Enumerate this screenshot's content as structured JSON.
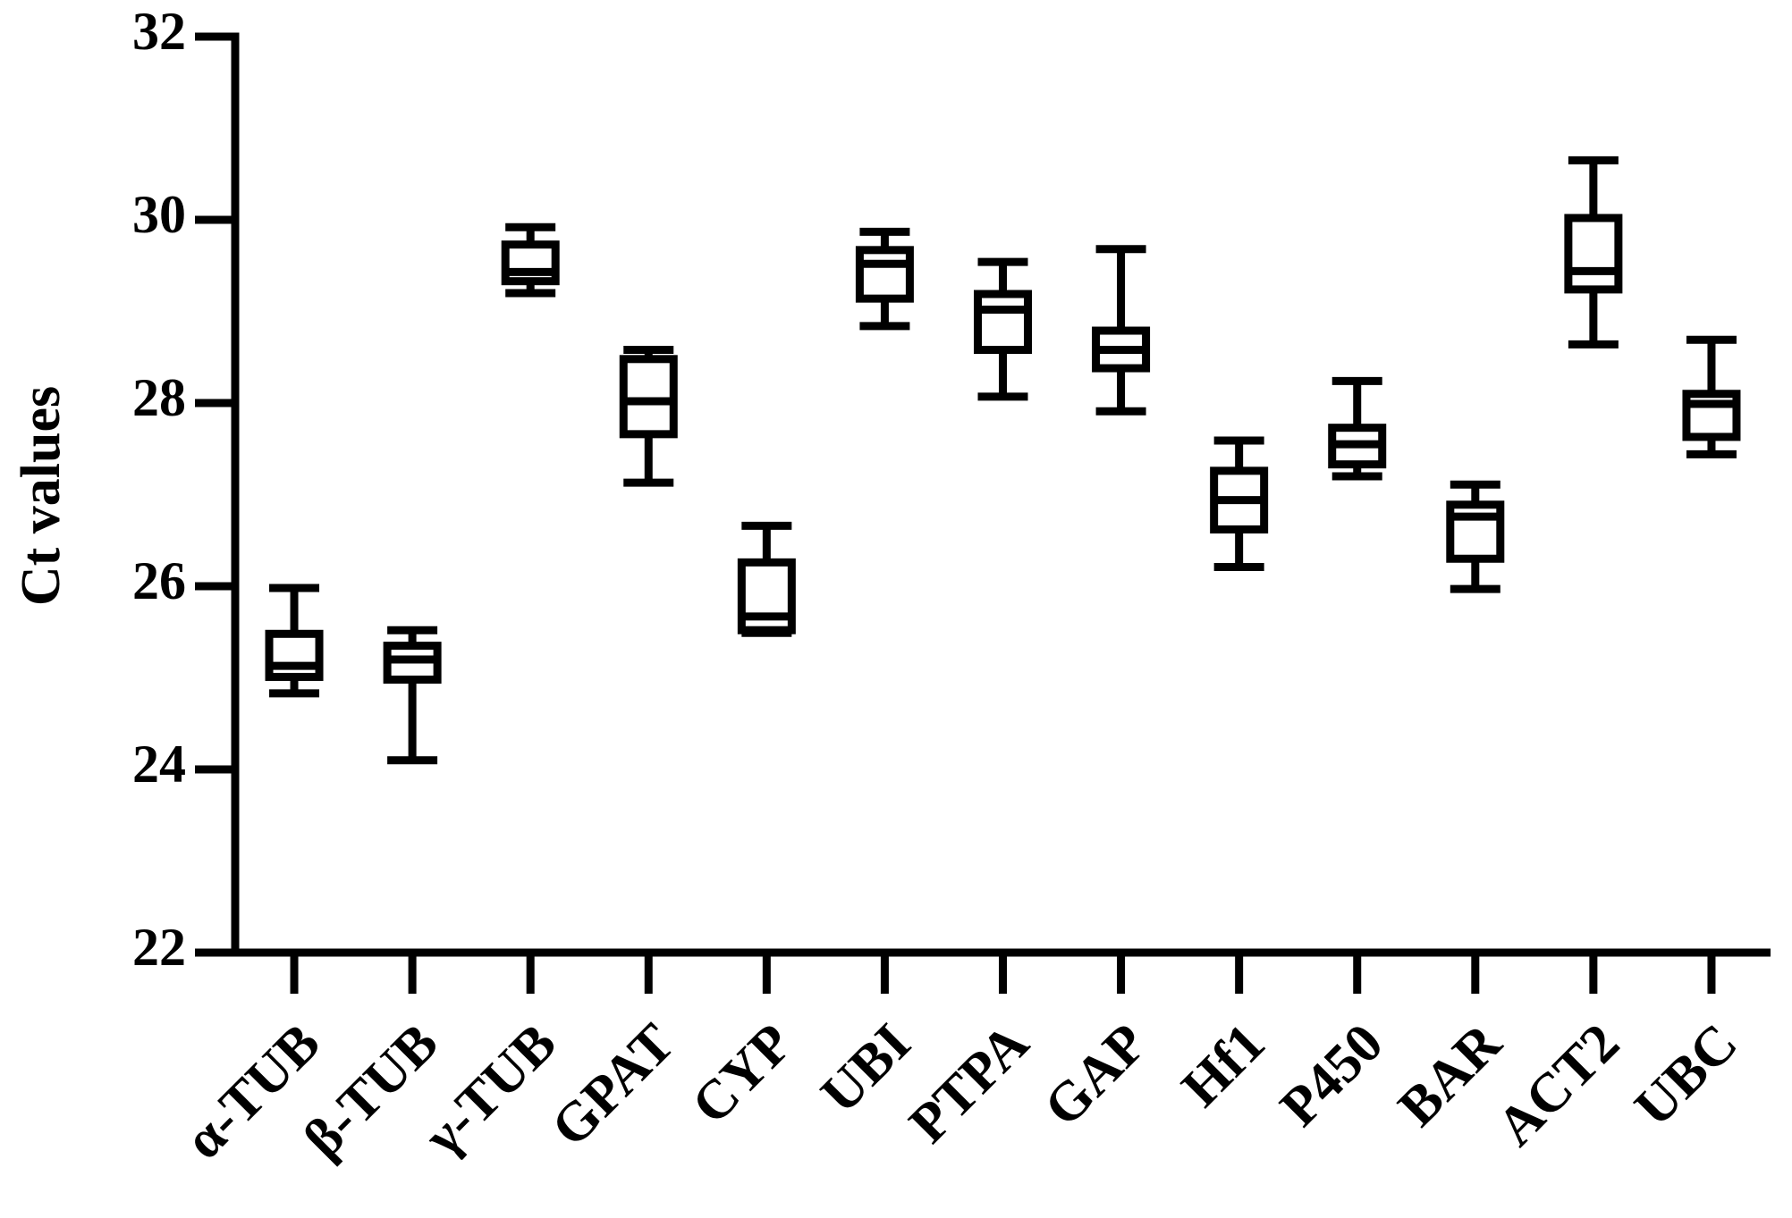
{
  "chart_data": {
    "type": "box",
    "ylabel": "Ct values",
    "categories": [
      "α-TUB",
      "β-TUB",
      "γ-TUB",
      "GPAT",
      "CYP",
      "UBI",
      "PTPA",
      "GAP",
      "Hf1",
      "P450",
      "BAR",
      "ACT2",
      "UBC"
    ],
    "min": [
      24.83,
      24.1,
      29.2,
      27.13,
      25.49,
      28.84,
      28.07,
      27.91,
      26.21,
      27.2,
      25.97,
      28.64,
      27.44
    ],
    "q1": [
      25.01,
      24.98,
      29.33,
      27.66,
      25.52,
      29.14,
      28.58,
      28.38,
      26.62,
      27.33,
      26.3,
      29.24,
      27.63
    ],
    "median": [
      25.13,
      25.2,
      29.43,
      28.02,
      25.67,
      29.52,
      29.02,
      28.58,
      26.94,
      27.55,
      26.76,
      29.44,
      27.99
    ],
    "q3": [
      25.48,
      25.35,
      29.73,
      28.48,
      26.26,
      29.67,
      29.19,
      28.79,
      27.26,
      27.73,
      26.89,
      30.02,
      28.1
    ],
    "max": [
      25.98,
      25.52,
      29.92,
      28.58,
      26.66,
      29.87,
      29.54,
      29.68,
      27.59,
      28.24,
      27.11,
      30.65,
      28.69
    ],
    "color": "#000000",
    "ylim": [
      22,
      32
    ],
    "yticks": [
      22,
      24,
      26,
      28,
      30,
      32
    ],
    "grid": false
  }
}
